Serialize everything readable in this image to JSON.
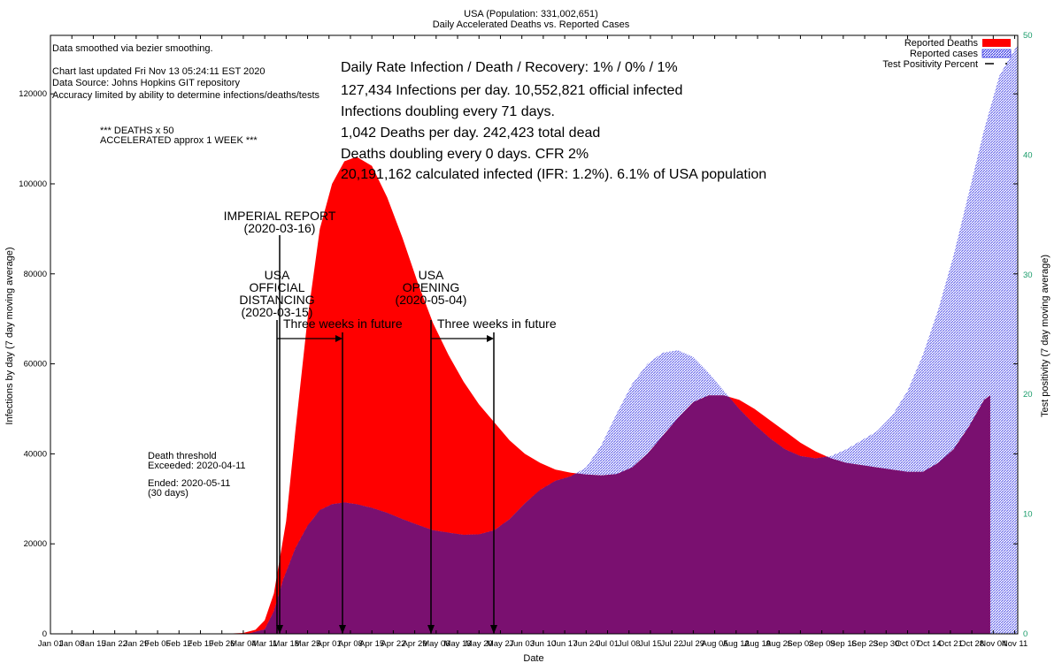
{
  "chart_data": {
    "type": "area",
    "title": "USA (Population: 331,002,651)",
    "subtitle": "Daily Accelerated Deaths vs. Reported Cases",
    "xlabel": "Date",
    "ylabel": "Infections by day (7 day moving average)",
    "y2label": "Test positivity (7 day moving average)",
    "ylim": [
      0,
      133000
    ],
    "y2lim": [
      0,
      50
    ],
    "yticks": [
      "0",
      "20000",
      "40000",
      "60000",
      "80000",
      "100000",
      "120000"
    ],
    "y2ticks": [
      "0",
      "10",
      "20",
      "30",
      "40",
      "50"
    ],
    "x_categories": [
      "Jan 01",
      "Jan 08",
      "Jan 15",
      "Jan 22",
      "Jan 29",
      "Feb 05",
      "Feb 12",
      "Feb 19",
      "Feb 26",
      "Mar 04",
      "Mar 11",
      "Mar 18",
      "Mar 25",
      "Apr 01",
      "Apr 08",
      "Apr 15",
      "Apr 22",
      "Apr 29",
      "May 06",
      "May 13",
      "May 20",
      "May 27",
      "Jun 03",
      "Jun 10",
      "Jun 17",
      "Jun 24",
      "Jul 01",
      "Jul 08",
      "Jul 15",
      "Jul 22",
      "Jul 29",
      "Aug 05",
      "Aug 12",
      "Aug 19",
      "Aug 26",
      "Sep 02",
      "Sep 09",
      "Sep 16",
      "Sep 23",
      "Sep 30",
      "Oct 07",
      "Oct 14",
      "Oct 21",
      "Oct 28",
      "Nov 04",
      "Nov 11"
    ],
    "x_tick_labels": [
      "Jan 01",
      "Jan 08",
      "Jan 15",
      "Jan 22",
      "Jan 29",
      "Feb 05",
      "Feb 12",
      "Feb 19",
      "Feb 26",
      "Mar 04",
      "Mar 11",
      "Mar 18",
      "Mar 25",
      "Apr 01",
      "Apr 08",
      "Apr 15",
      "Apr 22",
      "Apr 29",
      "May 06",
      "May 13",
      "May 20",
      "May 27",
      "Jun 03",
      "Jun 10",
      "Jun 17",
      "Jun 24",
      "Jul 01",
      "Jul 08",
      "Jul 15",
      "Jul 22",
      "Jul 29",
      "Aug 05",
      "Aug 12",
      "Aug 19",
      "Aug 26",
      "Sep 02",
      "Sep 09",
      "Sep 16",
      "Sep 23",
      "Sep 30",
      "Oct 07",
      "Oct 14",
      "Oct 21",
      "Oct 28",
      "Nov 04",
      "Nov 11"
    ],
    "series": [
      {
        "name": "Reported Deaths",
        "color": "#ff0000",
        "points": [
          [
            0,
            0
          ],
          [
            56,
            0
          ],
          [
            63,
            200
          ],
          [
            67,
            900
          ],
          [
            70,
            3000
          ],
          [
            73,
            9000
          ],
          [
            77,
            25000
          ],
          [
            80,
            45000
          ],
          [
            84,
            70000
          ],
          [
            88,
            90000
          ],
          [
            92,
            100000
          ],
          [
            96,
            105000
          ],
          [
            100,
            106000
          ],
          [
            105,
            104000
          ],
          [
            110,
            97000
          ],
          [
            115,
            88000
          ],
          [
            120,
            78000
          ],
          [
            125,
            69000
          ],
          [
            130,
            62000
          ],
          [
            135,
            56000
          ],
          [
            140,
            51000
          ],
          [
            145,
            47000
          ],
          [
            150,
            43000
          ],
          [
            155,
            40000
          ],
          [
            160,
            38000
          ],
          [
            165,
            36500
          ],
          [
            170,
            35800
          ],
          [
            175,
            35400
          ],
          [
            180,
            35200
          ],
          [
            185,
            35500
          ],
          [
            190,
            37000
          ],
          [
            195,
            40000
          ],
          [
            200,
            44000
          ],
          [
            205,
            48000
          ],
          [
            210,
            51500
          ],
          [
            215,
            53000
          ],
          [
            220,
            53000
          ],
          [
            225,
            52000
          ],
          [
            230,
            50000
          ],
          [
            235,
            47500
          ],
          [
            240,
            45000
          ],
          [
            245,
            42500
          ],
          [
            250,
            40500
          ],
          [
            255,
            39000
          ],
          [
            260,
            38000
          ],
          [
            265,
            37500
          ],
          [
            270,
            37000
          ],
          [
            275,
            36500
          ],
          [
            280,
            36000
          ],
          [
            285,
            36000
          ],
          [
            290,
            38000
          ],
          [
            295,
            41000
          ],
          [
            300,
            46000
          ],
          [
            305,
            52000
          ],
          [
            307,
            53000
          ],
          [
            307,
            0
          ]
        ]
      },
      {
        "name": "Reported cases",
        "color": "#5555ee",
        "points": [
          [
            0,
            0
          ],
          [
            60,
            0
          ],
          [
            65,
            100
          ],
          [
            70,
            1000
          ],
          [
            73,
            5000
          ],
          [
            76,
            12000
          ],
          [
            80,
            19000
          ],
          [
            84,
            24000
          ],
          [
            88,
            27500
          ],
          [
            92,
            28800
          ],
          [
            96,
            29200
          ],
          [
            100,
            28800
          ],
          [
            105,
            28000
          ],
          [
            110,
            26900
          ],
          [
            115,
            25500
          ],
          [
            120,
            24200
          ],
          [
            125,
            23000
          ],
          [
            130,
            22500
          ],
          [
            135,
            22000
          ],
          [
            140,
            22100
          ],
          [
            145,
            23000
          ],
          [
            150,
            25500
          ],
          [
            155,
            29000
          ],
          [
            160,
            32000
          ],
          [
            165,
            34000
          ],
          [
            170,
            35000
          ],
          [
            175,
            37000
          ],
          [
            180,
            42000
          ],
          [
            185,
            49000
          ],
          [
            190,
            55500
          ],
          [
            195,
            60000
          ],
          [
            200,
            62500
          ],
          [
            205,
            63000
          ],
          [
            210,
            61500
          ],
          [
            215,
            58000
          ],
          [
            220,
            54000
          ],
          [
            225,
            50000
          ],
          [
            230,
            46500
          ],
          [
            235,
            43500
          ],
          [
            240,
            41000
          ],
          [
            245,
            39500
          ],
          [
            250,
            39000
          ],
          [
            255,
            39500
          ],
          [
            260,
            41000
          ],
          [
            265,
            43000
          ],
          [
            270,
            45000
          ],
          [
            275,
            48500
          ],
          [
            280,
            54000
          ],
          [
            285,
            62000
          ],
          [
            290,
            72000
          ],
          [
            295,
            84000
          ],
          [
            300,
            98000
          ],
          [
            305,
            112000
          ],
          [
            310,
            124000
          ],
          [
            316,
            131000
          ],
          [
            316,
            0
          ]
        ]
      },
      {
        "name": "Test Positivity Percent",
        "color": "#000000",
        "points": []
      }
    ],
    "annotations": {
      "smoothing": "Data smoothed via bezier smoothing.",
      "updated": "Chart last updated Fri Nov 13 05:24:11 EST 2020",
      "source": "Data Source: Johns Hopkins GIT repository",
      "accuracy": "Accuracy limited by ability to determine infections/deaths/tests",
      "deaths_x": "*** DEATHS x 50",
      "accelerated": "ACCELERATED approx 1 WEEK ***",
      "rate": "Daily Rate Infection / Death / Recovery: 1% / 0% / 1%",
      "infections": "127,434 Infections per day.  10,552,821 official infected",
      "doubling_inf": "Infections doubling every 71 days.",
      "deaths_day": "1,042 Deaths per day.  242,423 total dead",
      "doubling_deaths": "Deaths doubling every 0 days.  CFR 2%",
      "calculated": "20,191,162 calculated infected (IFR: 1.2%).  6.1% of USA population",
      "imperial": "IMPERIAL REPORT",
      "imperial_date": "(2020-03-16)",
      "usa": "USA",
      "official": "OFFICIAL",
      "distancing": "DISTANCING",
      "distancing_date": "(2020-03-15)",
      "usa2": "USA",
      "opening": "OPENING",
      "opening_date": "(2020-05-04)",
      "three_weeks_1": "Three weeks in future",
      "three_weeks_2": "Three weeks in future",
      "threshold": "Death threshold",
      "exceeded": "Exceeded: 2020-04-11",
      "ended": "Ended: 2020-05-11",
      "days": "(30 days)"
    }
  }
}
